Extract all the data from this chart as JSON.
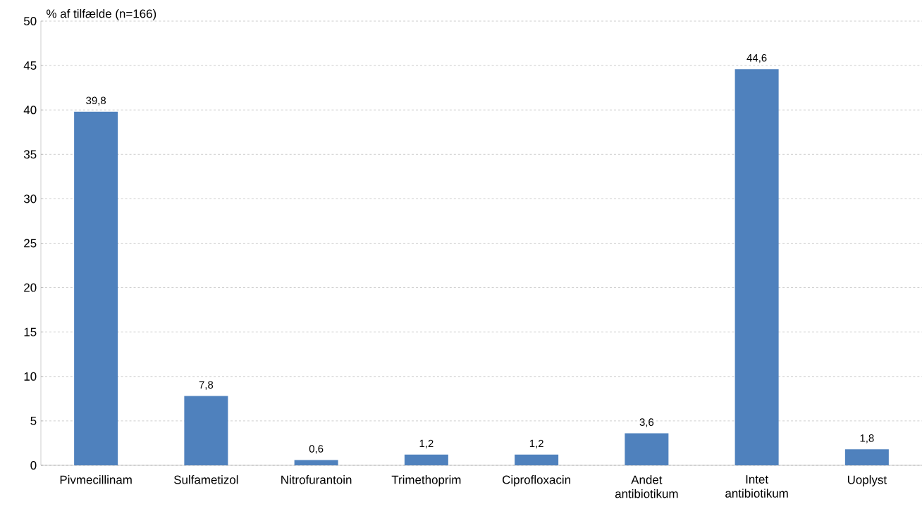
{
  "chart_data": {
    "type": "bar",
    "ylabel": "% af tilfælde (n=166)",
    "categories": [
      "Pivmecillinam",
      "Sulfametizol",
      "Nitrofurantoin",
      "Trimethoprim",
      "Ciprofloxacin",
      "Andet antibiotikum",
      "Intet antibiotikum",
      "Uoplyst"
    ],
    "values": [
      39.8,
      7.8,
      0.6,
      1.2,
      1.2,
      3.6,
      44.6,
      1.8
    ],
    "value_labels": [
      "39,8",
      "7,8",
      "0,6",
      "1,2",
      "1,2",
      "3,6",
      "44,6",
      "1,8"
    ],
    "color": "#4f81bd",
    "ylim": [
      0,
      50
    ],
    "yticks": [
      0,
      5,
      10,
      15,
      20,
      25,
      30,
      35,
      40,
      45,
      50
    ],
    "grid": "y"
  }
}
